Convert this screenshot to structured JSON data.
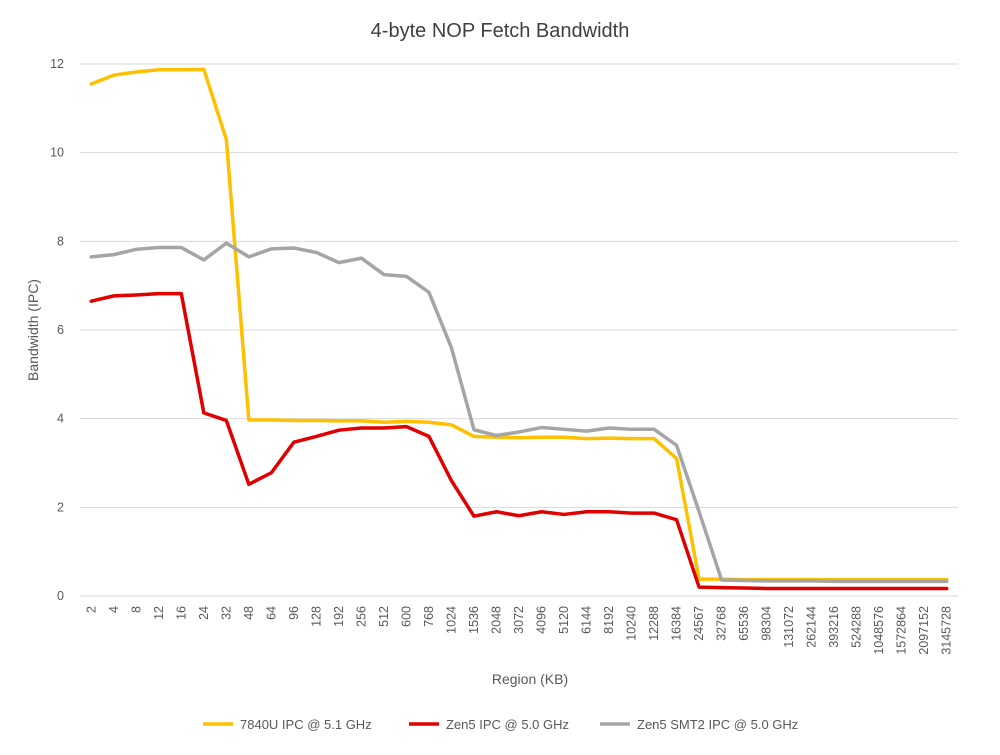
{
  "chart_data": {
    "type": "line",
    "title": "4-byte NOP Fetch Bandwidth",
    "xlabel": "Region (KB)",
    "ylabel": "Bandwidth (IPC)",
    "ylim": [
      0,
      12
    ],
    "yticks": [
      0,
      2,
      4,
      6,
      8,
      10,
      12
    ],
    "grid": true,
    "legend_position": "bottom",
    "categories": [
      "2",
      "4",
      "8",
      "12",
      "16",
      "24",
      "32",
      "48",
      "64",
      "96",
      "128",
      "192",
      "256",
      "512",
      "600",
      "768",
      "1024",
      "1536",
      "2048",
      "3072",
      "4096",
      "5120",
      "6144",
      "8192",
      "10240",
      "12288",
      "16384",
      "24567",
      "32768",
      "65536",
      "98304",
      "131072",
      "262144",
      "393216",
      "524288",
      "1048576",
      "1572864",
      "2097152",
      "3145728"
    ],
    "series": [
      {
        "name": "7840U IPC @ 5.1 GHz",
        "color": "#ffc000",
        "values": [
          11.55,
          11.75,
          11.82,
          11.87,
          11.87,
          11.88,
          10.3,
          3.97,
          3.97,
          3.96,
          3.96,
          3.95,
          3.95,
          3.92,
          3.94,
          3.92,
          3.86,
          3.6,
          3.58,
          3.57,
          3.58,
          3.58,
          3.55,
          3.56,
          3.55,
          3.55,
          3.1,
          0.38,
          0.38,
          0.37,
          0.37,
          0.37,
          0.37,
          0.37,
          0.37,
          0.37,
          0.37,
          0.37,
          0.37
        ]
      },
      {
        "name": "Zen5 IPC @ 5.0 GHz",
        "color": "#e00000",
        "values": [
          6.65,
          6.77,
          6.79,
          6.82,
          6.82,
          4.13,
          3.96,
          2.52,
          2.78,
          3.47,
          3.6,
          3.74,
          3.79,
          3.79,
          3.82,
          3.6,
          2.6,
          1.8,
          1.9,
          1.81,
          1.9,
          1.84,
          1.9,
          1.9,
          1.87,
          1.87,
          1.72,
          0.2,
          0.19,
          0.18,
          0.17,
          0.17,
          0.17,
          0.17,
          0.17,
          0.17,
          0.17,
          0.17,
          0.17
        ]
      },
      {
        "name": "Zen5 SMT2 IPC @ 5.0 GHz",
        "color": "#a5a5a5",
        "values": [
          7.65,
          7.7,
          7.82,
          7.86,
          7.86,
          7.58,
          7.96,
          7.65,
          7.83,
          7.85,
          7.75,
          7.52,
          7.62,
          7.25,
          7.21,
          6.85,
          5.6,
          3.75,
          3.62,
          3.7,
          3.8,
          3.76,
          3.72,
          3.79,
          3.76,
          3.76,
          3.4,
          1.9,
          0.36,
          0.35,
          0.34,
          0.34,
          0.34,
          0.33,
          0.33,
          0.33,
          0.33,
          0.33,
          0.33
        ]
      }
    ]
  }
}
